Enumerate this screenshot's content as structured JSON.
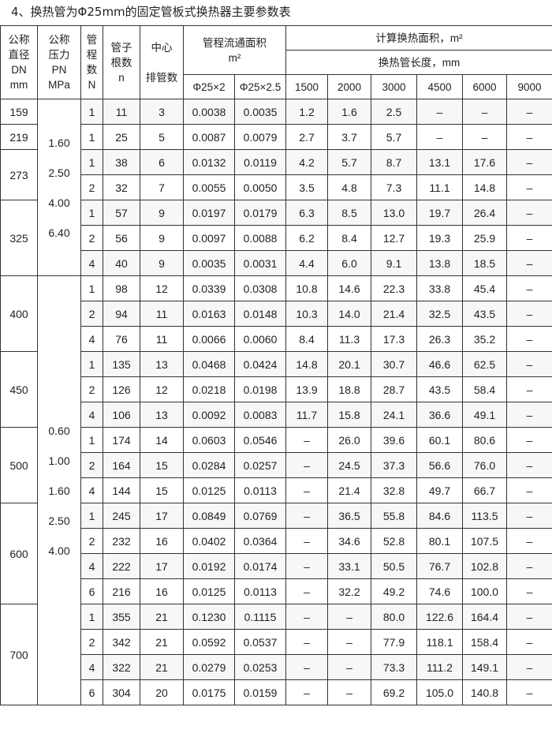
{
  "title": "4、换热管为Φ25mm的固定管板式换热器主要参数表",
  "headers": {
    "dn": "公称\n直径\nDN\nmm",
    "pn": "公称\n压力\nPN\nMPa",
    "n_passes": "管\n程\n数\nN",
    "tubes": "管子\n根数\nn",
    "center": "中心\n\n排管数",
    "flow_area": "管程流通面积",
    "flow_unit": "m²",
    "flow_sub": [
      "Φ25×2",
      "Φ25×2.5"
    ],
    "area": "计算换热面积，m²",
    "length": "换热管长度，mm",
    "lengths": [
      "1500",
      "2000",
      "3000",
      "4500",
      "6000",
      "9000"
    ]
  },
  "pressure_groups": [
    {
      "rows": 7,
      "values": [
        "1.60",
        "2.50",
        "4.00",
        "6.40"
      ]
    },
    {
      "rows": 18,
      "values": [
        "0.60",
        "1.00",
        "1.60",
        "2.50",
        "4.00"
      ]
    }
  ],
  "groups": [
    {
      "dn": "159",
      "rows": [
        [
          "1",
          "11",
          "3",
          "0.0038",
          "0.0035",
          "1.2",
          "1.6",
          "2.5",
          "–",
          "–",
          "–"
        ]
      ]
    },
    {
      "dn": "219",
      "rows": [
        [
          "1",
          "25",
          "5",
          "0.0087",
          "0.0079",
          "2.7",
          "3.7",
          "5.7",
          "–",
          "–",
          "–"
        ]
      ]
    },
    {
      "dn": "273",
      "rows": [
        [
          "1",
          "38",
          "6",
          "0.0132",
          "0.0119",
          "4.2",
          "5.7",
          "8.7",
          "13.1",
          "17.6",
          "–"
        ],
        [
          "2",
          "32",
          "7",
          "0.0055",
          "0.0050",
          "3.5",
          "4.8",
          "7.3",
          "11.1",
          "14.8",
          "–"
        ]
      ]
    },
    {
      "dn": "325",
      "rows": [
        [
          "1",
          "57",
          "9",
          "0.0197",
          "0.0179",
          "6.3",
          "8.5",
          "13.0",
          "19.7",
          "26.4",
          "–"
        ],
        [
          "2",
          "56",
          "9",
          "0.0097",
          "0.0088",
          "6.2",
          "8.4",
          "12.7",
          "19.3",
          "25.9",
          "–"
        ],
        [
          "4",
          "40",
          "9",
          "0.0035",
          "0.0031",
          "4.4",
          "6.0",
          "9.1",
          "13.8",
          "18.5",
          "–"
        ]
      ]
    },
    {
      "dn": "400",
      "rows": [
        [
          "1",
          "98",
          "12",
          "0.0339",
          "0.0308",
          "10.8",
          "14.6",
          "22.3",
          "33.8",
          "45.4",
          "–"
        ],
        [
          "2",
          "94",
          "11",
          "0.0163",
          "0.0148",
          "10.3",
          "14.0",
          "21.4",
          "32.5",
          "43.5",
          "–"
        ],
        [
          "4",
          "76",
          "11",
          "0.0066",
          "0.0060",
          "8.4",
          "11.3",
          "17.3",
          "26.3",
          "35.2",
          "–"
        ]
      ]
    },
    {
      "dn": "450",
      "rows": [
        [
          "1",
          "135",
          "13",
          "0.0468",
          "0.0424",
          "14.8",
          "20.1",
          "30.7",
          "46.6",
          "62.5",
          "–"
        ],
        [
          "2",
          "126",
          "12",
          "0.0218",
          "0.0198",
          "13.9",
          "18.8",
          "28.7",
          "43.5",
          "58.4",
          "–"
        ],
        [
          "4",
          "106",
          "13",
          "0.0092",
          "0.0083",
          "11.7",
          "15.8",
          "24.1",
          "36.6",
          "49.1",
          "–"
        ]
      ]
    },
    {
      "dn": "500",
      "rows": [
        [
          "1",
          "174",
          "14",
          "0.0603",
          "0.0546",
          "–",
          "26.0",
          "39.6",
          "60.1",
          "80.6",
          "–"
        ],
        [
          "2",
          "164",
          "15",
          "0.0284",
          "0.0257",
          "–",
          "24.5",
          "37.3",
          "56.6",
          "76.0",
          "–"
        ],
        [
          "4",
          "144",
          "15",
          "0.0125",
          "0.0113",
          "–",
          "21.4",
          "32.8",
          "49.7",
          "66.7",
          "–"
        ]
      ]
    },
    {
      "dn": "600",
      "rows": [
        [
          "1",
          "245",
          "17",
          "0.0849",
          "0.0769",
          "–",
          "36.5",
          "55.8",
          "84.6",
          "113.5",
          "–"
        ],
        [
          "2",
          "232",
          "16",
          "0.0402",
          "0.0364",
          "–",
          "34.6",
          "52.8",
          "80.1",
          "107.5",
          "–"
        ],
        [
          "4",
          "222",
          "17",
          "0.0192",
          "0.0174",
          "–",
          "33.1",
          "50.5",
          "76.7",
          "102.8",
          "–"
        ],
        [
          "6",
          "216",
          "16",
          "0.0125",
          "0.0113",
          "–",
          "32.2",
          "49.2",
          "74.6",
          "100.0",
          "–"
        ]
      ]
    },
    {
      "dn": "700",
      "rows": [
        [
          "1",
          "355",
          "21",
          "0.1230",
          "0.1115",
          "–",
          "–",
          "80.0",
          "122.6",
          "164.4",
          "–"
        ],
        [
          "2",
          "342",
          "21",
          "0.0592",
          "0.0537",
          "–",
          "–",
          "77.9",
          "118.1",
          "158.4",
          "–"
        ],
        [
          "4",
          "322",
          "21",
          "0.0279",
          "0.0253",
          "–",
          "–",
          "73.3",
          "111.2",
          "149.1",
          "–"
        ],
        [
          "6",
          "304",
          "20",
          "0.0175",
          "0.0159",
          "–",
          "–",
          "69.2",
          "105.0",
          "140.8",
          "–"
        ]
      ]
    }
  ]
}
